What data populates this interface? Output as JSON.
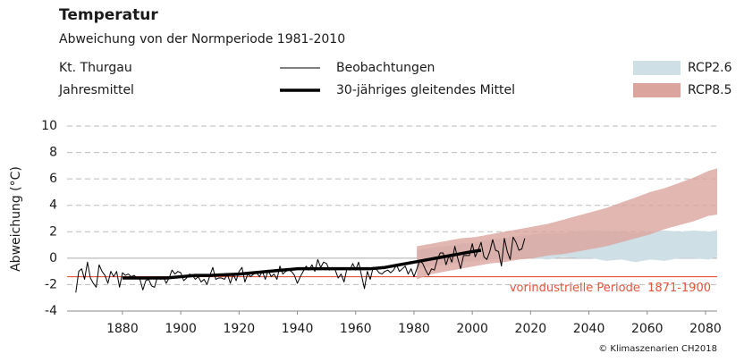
{
  "chart_data": {
    "type": "line",
    "title": "Temperatur",
    "subtitle": "Abweichung von der Normperiode 1981-2010",
    "region": "Kt. Thurgau",
    "period": "Jahresmittel",
    "ylabel": "Abweichung (°C)",
    "credit": "© Klimaszenarien CH2018",
    "xlim": [
      1861,
      2084
    ],
    "ylim": [
      -4,
      10
    ],
    "xticks": [
      1880,
      1900,
      1920,
      1940,
      1960,
      1980,
      2000,
      2020,
      2040,
      2060,
      2080
    ],
    "yticks": [
      -4,
      -2,
      0,
      2,
      4,
      6,
      8,
      10
    ],
    "grid": true,
    "bands": [
      {
        "name": "RCP2.6",
        "color": "#cfdfe6",
        "x": [
          1981,
          1986,
          1991,
          1996,
          2001,
          2006,
          2011,
          2016,
          2021,
          2026,
          2031,
          2036,
          2041,
          2046,
          2051,
          2056,
          2061,
          2066,
          2071,
          2076,
          2081,
          2084
        ],
        "lower": [
          -0.8,
          -0.6,
          -0.5,
          -0.3,
          -0.2,
          -0.1,
          0,
          0.1,
          0,
          -0.1,
          0.1,
          0,
          0,
          -0.2,
          -0.1,
          -0.3,
          -0.1,
          -0.2,
          0,
          0,
          -0.1,
          0.1
        ],
        "upper": [
          0.6,
          0.8,
          0.9,
          1.1,
          1.2,
          1.4,
          1.5,
          1.7,
          1.8,
          1.9,
          1.9,
          2.0,
          2.1,
          2.0,
          2.0,
          1.9,
          2.0,
          2.1,
          2.0,
          2.1,
          2.0,
          2.1
        ]
      },
      {
        "name": "RCP8.5",
        "color": "#dba49d",
        "x": [
          1981,
          1986,
          1991,
          1996,
          2001,
          2006,
          2011,
          2016,
          2021,
          2026,
          2031,
          2036,
          2041,
          2046,
          2051,
          2056,
          2061,
          2066,
          2071,
          2076,
          2081,
          2084
        ],
        "lower": [
          -1.6,
          -1.2,
          -1.0,
          -0.8,
          -0.6,
          -0.4,
          -0.3,
          -0.1,
          0.0,
          0.2,
          0.3,
          0.5,
          0.7,
          0.9,
          1.2,
          1.5,
          1.8,
          2.2,
          2.5,
          2.8,
          3.2,
          3.3
        ],
        "upper": [
          0.9,
          1.1,
          1.3,
          1.5,
          1.6,
          1.8,
          2.0,
          2.2,
          2.4,
          2.6,
          2.9,
          3.2,
          3.5,
          3.8,
          4.2,
          4.6,
          5.0,
          5.3,
          5.7,
          6.1,
          6.6,
          6.8
        ]
      }
    ],
    "series": [
      {
        "name": "Beobachtungen",
        "color": "#000000",
        "x": [
          1864,
          1865,
          1866,
          1867,
          1868,
          1869,
          1870,
          1871,
          1872,
          1873,
          1874,
          1875,
          1876,
          1877,
          1878,
          1879,
          1880,
          1881,
          1882,
          1883,
          1884,
          1885,
          1886,
          1887,
          1888,
          1889,
          1890,
          1891,
          1892,
          1893,
          1894,
          1895,
          1896,
          1897,
          1898,
          1899,
          1900,
          1901,
          1902,
          1903,
          1904,
          1905,
          1906,
          1907,
          1908,
          1909,
          1910,
          1911,
          1912,
          1913,
          1914,
          1915,
          1916,
          1917,
          1918,
          1919,
          1920,
          1921,
          1922,
          1923,
          1924,
          1925,
          1926,
          1927,
          1928,
          1929,
          1930,
          1931,
          1932,
          1933,
          1934,
          1935,
          1936,
          1937,
          1938,
          1939,
          1940,
          1941,
          1942,
          1943,
          1944,
          1945,
          1946,
          1947,
          1948,
          1949,
          1950,
          1951,
          1952,
          1953,
          1954,
          1955,
          1956,
          1957,
          1958,
          1959,
          1960,
          1961,
          1962,
          1963,
          1964,
          1965,
          1966,
          1967,
          1968,
          1969,
          1970,
          1971,
          1972,
          1973,
          1974,
          1975,
          1976,
          1977,
          1978,
          1979,
          1980,
          1981,
          1982,
          1983,
          1984,
          1985,
          1986,
          1987,
          1988,
          1989,
          1990,
          1991,
          1992,
          1993,
          1994,
          1995,
          1996,
          1997,
          1998,
          1999,
          2000,
          2001,
          2002,
          2003,
          2004,
          2005,
          2006,
          2007,
          2008,
          2009,
          2010,
          2011,
          2012,
          2013,
          2014,
          2015,
          2016,
          2017,
          2018
        ],
        "values": [
          -2.6,
          -1.0,
          -0.8,
          -1.6,
          -0.3,
          -1.5,
          -1.9,
          -2.2,
          -0.5,
          -1.0,
          -1.3,
          -1.9,
          -1.0,
          -1.4,
          -1.0,
          -2.2,
          -1.1,
          -1.3,
          -1.2,
          -1.4,
          -1.3,
          -1.5,
          -1.6,
          -2.4,
          -1.7,
          -1.6,
          -2.1,
          -2.2,
          -1.4,
          -1.6,
          -1.4,
          -1.9,
          -1.5,
          -0.9,
          -1.2,
          -1.0,
          -1.1,
          -1.7,
          -1.5,
          -1.2,
          -1.3,
          -1.6,
          -1.4,
          -1.8,
          -1.6,
          -2.0,
          -1.3,
          -0.7,
          -1.6,
          -1.5,
          -1.5,
          -1.6,
          -1.2,
          -1.9,
          -1.2,
          -1.7,
          -1.0,
          -0.7,
          -1.8,
          -1.2,
          -1.4,
          -1.2,
          -1.1,
          -1.4,
          -1.0,
          -1.6,
          -0.9,
          -1.4,
          -1.2,
          -1.6,
          -0.6,
          -1.2,
          -1.0,
          -0.9,
          -1.0,
          -1.3,
          -1.9,
          -1.4,
          -1.0,
          -0.6,
          -0.9,
          -0.5,
          -1.0,
          -0.1,
          -0.7,
          -0.3,
          -0.4,
          -0.9,
          -0.7,
          -0.9,
          -1.5,
          -1.2,
          -1.8,
          -0.8,
          -0.9,
          -0.4,
          -0.9,
          -0.3,
          -1.3,
          -2.3,
          -1.0,
          -1.6,
          -0.7,
          -0.8,
          -1.1,
          -1.2,
          -1.0,
          -0.9,
          -1.1,
          -0.9,
          -0.5,
          -1.0,
          -0.8,
          -0.6,
          -1.2,
          -0.8,
          -1.4,
          -0.8,
          -0.2,
          -0.4,
          -0.9,
          -1.3,
          -0.8,
          -0.9,
          -0.1,
          0.4,
          0.4,
          -0.5,
          0.2,
          -0.3,
          0.9,
          0.0,
          -0.8,
          0.2,
          0.2,
          0.2,
          1.1,
          0.1,
          0.6,
          1.2,
          0.1,
          -0.1,
          0.5,
          1.4,
          0.6,
          0.5,
          -0.6,
          1.5,
          0.5,
          -0.1,
          1.6,
          1.2,
          0.6,
          0.7,
          1.5
        ]
      },
      {
        "name": "30-jähriges gleitendes Mittel",
        "color": "#000000",
        "x": [
          1880,
          1885,
          1890,
          1895,
          1900,
          1905,
          1910,
          1915,
          1920,
          1925,
          1930,
          1935,
          1940,
          1945,
          1950,
          1955,
          1960,
          1965,
          1970,
          1975,
          1980,
          1985,
          1990,
          1995,
          2000,
          2003
        ],
        "values": [
          -1.5,
          -1.5,
          -1.5,
          -1.5,
          -1.4,
          -1.3,
          -1.3,
          -1.25,
          -1.2,
          -1.1,
          -1.0,
          -0.9,
          -0.8,
          -0.8,
          -0.8,
          -0.8,
          -0.8,
          -0.8,
          -0.7,
          -0.5,
          -0.3,
          -0.1,
          0.1,
          0.3,
          0.5,
          0.6
        ]
      }
    ],
    "reference": {
      "value": -1.4,
      "label": "vorindustrielle Periode  1871-1900",
      "color": "#e4553e"
    }
  }
}
